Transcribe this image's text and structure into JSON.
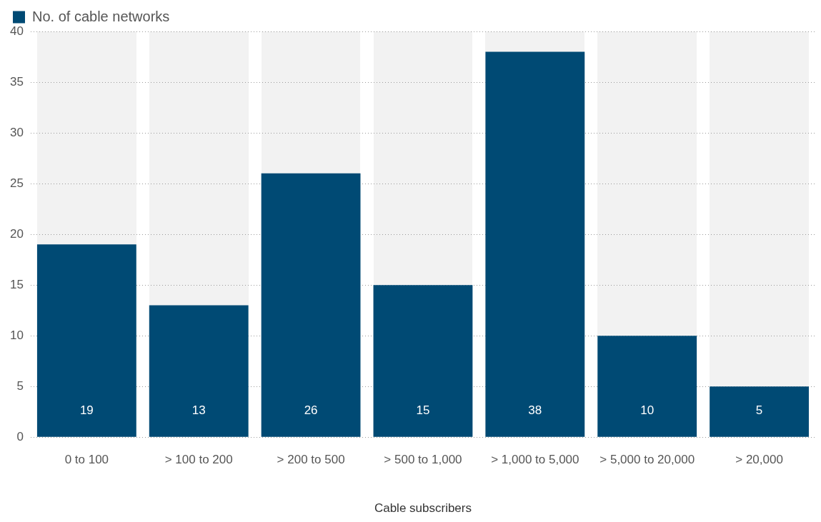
{
  "chart_data": {
    "type": "bar",
    "xlabel": "Cable subscribers",
    "categories": [
      "0 to 100",
      "> 100 to 200",
      "> 200 to 500",
      "> 500 to 1,000",
      "> 1,000 to 5,000",
      "> 5,000 to 20,000",
      "> 20,000"
    ],
    "series": [
      {
        "name": "No. of cable networks",
        "color": "#004a74",
        "values": [
          19,
          13,
          26,
          15,
          38,
          10,
          5
        ]
      }
    ],
    "ylim": [
      0,
      40
    ],
    "yticks": [
      0,
      5,
      10,
      15,
      20,
      25,
      30,
      35,
      40
    ],
    "grid": "y",
    "legend": "top left",
    "data_labels": true
  }
}
